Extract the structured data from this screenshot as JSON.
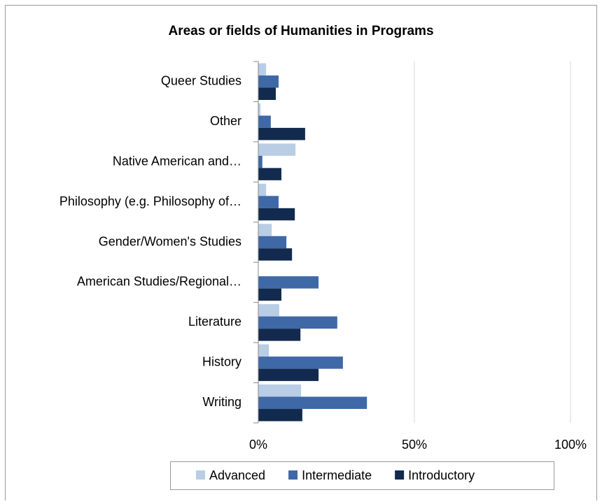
{
  "chart_data": {
    "type": "hbar",
    "title": "Areas or fields of Humanities in Programs",
    "categories": [
      "Queer Studies",
      "Other",
      "Native American and…",
      "Philosophy (e.g. Philosophy of…",
      "Gender/Women's Studies",
      "American Studies/Regional…",
      "Literature",
      "History",
      "Writing"
    ],
    "series": [
      {
        "name": "Advanced",
        "color": "#b9cde5",
        "values": [
          2.5,
          0.7,
          11.9,
          2.5,
          4.3,
          0,
          6.7,
          3.4,
          13.7
        ]
      },
      {
        "name": "Intermediate",
        "color": "#3f68a6",
        "values": [
          6.5,
          4,
          1.3,
          6.5,
          9,
          19.3,
          25.3,
          27.1,
          34.8
        ]
      },
      {
        "name": "Introductory",
        "color": "#112a4e",
        "values": [
          5.6,
          15,
          7.4,
          11.7,
          10.8,
          7.4,
          13.5,
          19.3,
          14.1
        ]
      }
    ],
    "xlim": [
      0,
      100
    ],
    "xticks": [
      {
        "value": 0,
        "label": "0%"
      },
      {
        "value": 50,
        "label": "50%"
      },
      {
        "value": 100,
        "label": "100%"
      }
    ],
    "grid": true,
    "legend": "bottom"
  }
}
